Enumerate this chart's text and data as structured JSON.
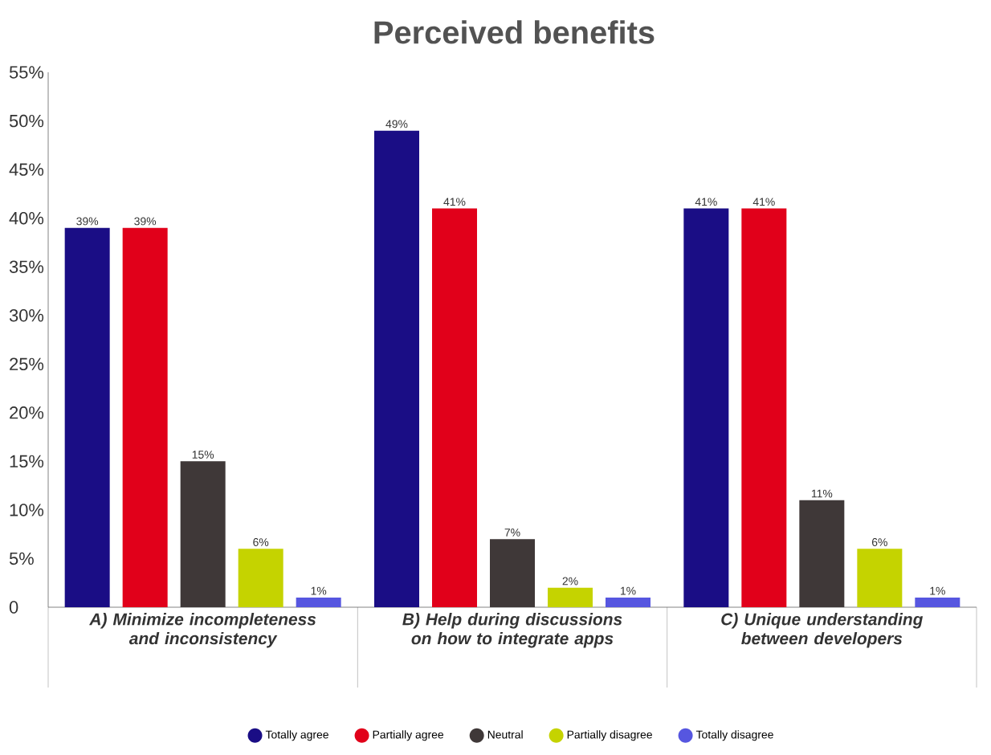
{
  "chart_data": {
    "type": "bar",
    "title": "Perceived benefits",
    "categories": [
      "A) Minimize incompleteness and inconsistency",
      "B) Help during discussions on how to integrate apps",
      "C) Unique understanding between developers"
    ],
    "series": [
      {
        "name": "Totally agree",
        "color": "#1a0d85",
        "values": [
          39,
          49,
          41
        ],
        "value_labels": [
          "39%",
          "49%",
          "41%"
        ]
      },
      {
        "name": "Partially agree",
        "color": "#e1001a",
        "values": [
          39,
          41,
          41
        ],
        "value_labels": [
          "39%",
          "41%",
          "41%"
        ]
      },
      {
        "name": "Neutral",
        "color": "#3f3838",
        "values": [
          15,
          7,
          11
        ],
        "value_labels": [
          "15%",
          "7%",
          "11%"
        ]
      },
      {
        "name": "Partially disagree",
        "color": "#c5d300",
        "values": [
          6,
          2,
          6
        ],
        "value_labels": [
          "6%",
          "2%",
          "6%"
        ]
      },
      {
        "name": "Totally disagree",
        "color": "#5656e0",
        "values": [
          1,
          1,
          1
        ],
        "value_labels": [
          "1%",
          "1%",
          "1%"
        ]
      }
    ],
    "ylim": [
      0,
      55
    ],
    "yticks": [
      0,
      {
        "value": 5,
        "label": "5%"
      },
      {
        "value": 10,
        "label": "10%"
      },
      {
        "value": 15,
        "label": "15%"
      },
      {
        "value": 20,
        "label": "20%"
      },
      {
        "value": 25,
        "label": "25%"
      },
      {
        "value": 30,
        "label": "30%"
      },
      {
        "value": 35,
        "label": "35%"
      },
      {
        "value": 40,
        "label": "40%"
      },
      {
        "value": 45,
        "label": "45%"
      },
      {
        "value": 50,
        "label": "50%"
      },
      {
        "value": 55,
        "label": "55%"
      }
    ],
    "legend": "bottom"
  }
}
